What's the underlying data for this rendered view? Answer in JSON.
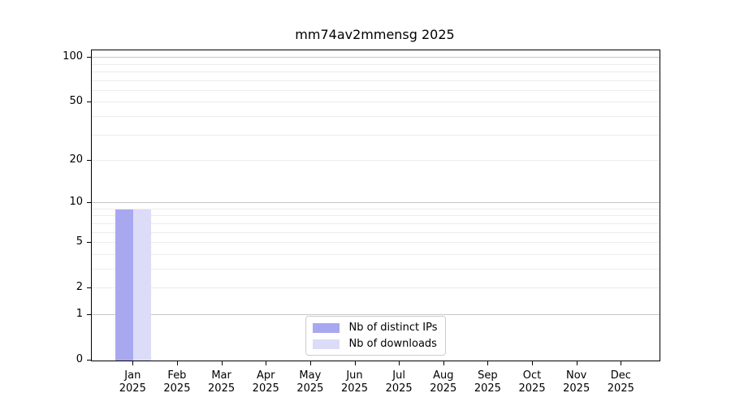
{
  "chart_data": {
    "type": "bar",
    "title": "mm74av2mmensg 2025",
    "categories": [
      "Jan",
      "Feb",
      "Mar",
      "Apr",
      "May",
      "Jun",
      "Jul",
      "Aug",
      "Sep",
      "Oct",
      "Nov",
      "Dec"
    ],
    "x_tick_year": "2025",
    "series": [
      {
        "name": "Nb of distinct IPs",
        "color": "#a8a8f0",
        "values": [
          9,
          0,
          0,
          0,
          0,
          0,
          0,
          0,
          0,
          0,
          0,
          0
        ]
      },
      {
        "name": "Nb of downloads",
        "color": "#dcdcf8",
        "values": [
          9,
          0,
          0,
          0,
          0,
          0,
          0,
          0,
          0,
          0,
          0,
          0
        ]
      }
    ],
    "y_ticks": [
      0,
      1,
      2,
      5,
      10,
      20,
      50,
      100
    ],
    "grid_major": [
      1,
      10,
      100
    ],
    "grid_minor": [
      2,
      3,
      4,
      5,
      6,
      7,
      8,
      9,
      20,
      30,
      40,
      50,
      60,
      70,
      80,
      90
    ],
    "y_scale": "log10(1+v)",
    "ylim": [
      0,
      112
    ],
    "grid": "horizontal",
    "legend_position": "lower center",
    "colors": {
      "grid_major": "#c6c6c6",
      "grid_minor": "#ececec",
      "spine": "#000000",
      "background": "#ffffff"
    }
  }
}
